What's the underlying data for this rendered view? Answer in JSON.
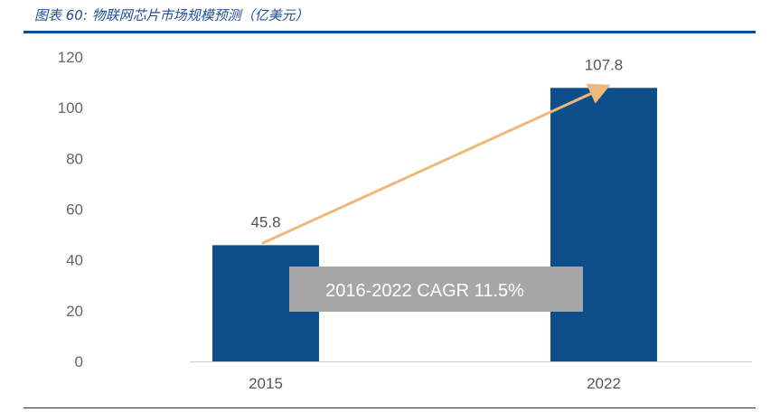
{
  "title": "图表 60:  物联网芯片市场规模预测（亿美元）",
  "chart_data": {
    "type": "bar",
    "title": "图表 60:  物联网芯片市场规模预测（亿美元）",
    "categories": [
      "2015",
      "2022"
    ],
    "values": [
      45.8,
      107.8
    ],
    "data_labels": [
      "45.8",
      "107.8"
    ],
    "ylim": [
      0,
      120
    ],
    "yticks": [
      "0",
      "20",
      "40",
      "60",
      "80",
      "100",
      "120"
    ],
    "grid": false,
    "bar_color": "#0d4f8b",
    "arrow_color": "#f0b87a",
    "annotation": "2016-2022    CAGR 11.5%",
    "annotation_bg": "#a6a6a6"
  }
}
